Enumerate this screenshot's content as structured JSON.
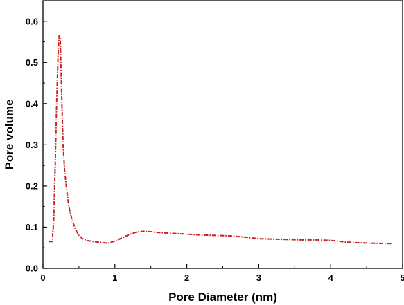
{
  "chart_data": {
    "type": "line",
    "title": "",
    "xlabel": "Pore Diameter (nm)",
    "ylabel": "Pore volume",
    "xlim": [
      0,
      5
    ],
    "ylim": [
      0,
      0.65
    ],
    "xticks": [
      0,
      1,
      2,
      3,
      4,
      5
    ],
    "xtick_labels": [
      "0",
      "1",
      "2",
      "3",
      "4",
      "5"
    ],
    "yticks": [
      0.0,
      0.1,
      0.2,
      0.3,
      0.4,
      0.5,
      0.6
    ],
    "ytick_labels": [
      "0.0",
      "0.1",
      "0.2",
      "0.3",
      "0.4",
      "0.5",
      "0.6"
    ],
    "grid": false,
    "legend": "none",
    "series": [
      {
        "color": "#cc1f1f",
        "line_style": "dash-dot",
        "x": [
          0.08,
          0.13,
          0.15,
          0.17,
          0.19,
          0.21,
          0.225,
          0.24,
          0.26,
          0.28,
          0.3,
          0.33,
          0.36,
          0.4,
          0.45,
          0.5,
          0.55,
          0.6,
          0.7,
          0.8,
          0.9,
          1.0,
          1.1,
          1.2,
          1.3,
          1.4,
          1.5,
          1.6,
          1.8,
          2.0,
          2.2,
          2.4,
          2.6,
          2.8,
          3.0,
          3.2,
          3.4,
          3.6,
          3.8,
          4.0,
          4.2,
          4.4,
          4.6,
          4.85
        ],
        "y": [
          0.065,
          0.065,
          0.12,
          0.25,
          0.4,
          0.52,
          0.565,
          0.56,
          0.42,
          0.3,
          0.24,
          0.19,
          0.15,
          0.12,
          0.095,
          0.08,
          0.072,
          0.068,
          0.065,
          0.063,
          0.061,
          0.066,
          0.074,
          0.082,
          0.088,
          0.09,
          0.089,
          0.087,
          0.085,
          0.083,
          0.081,
          0.08,
          0.079,
          0.076,
          0.072,
          0.071,
          0.07,
          0.069,
          0.069,
          0.068,
          0.064,
          0.062,
          0.061,
          0.06
        ]
      }
    ]
  }
}
